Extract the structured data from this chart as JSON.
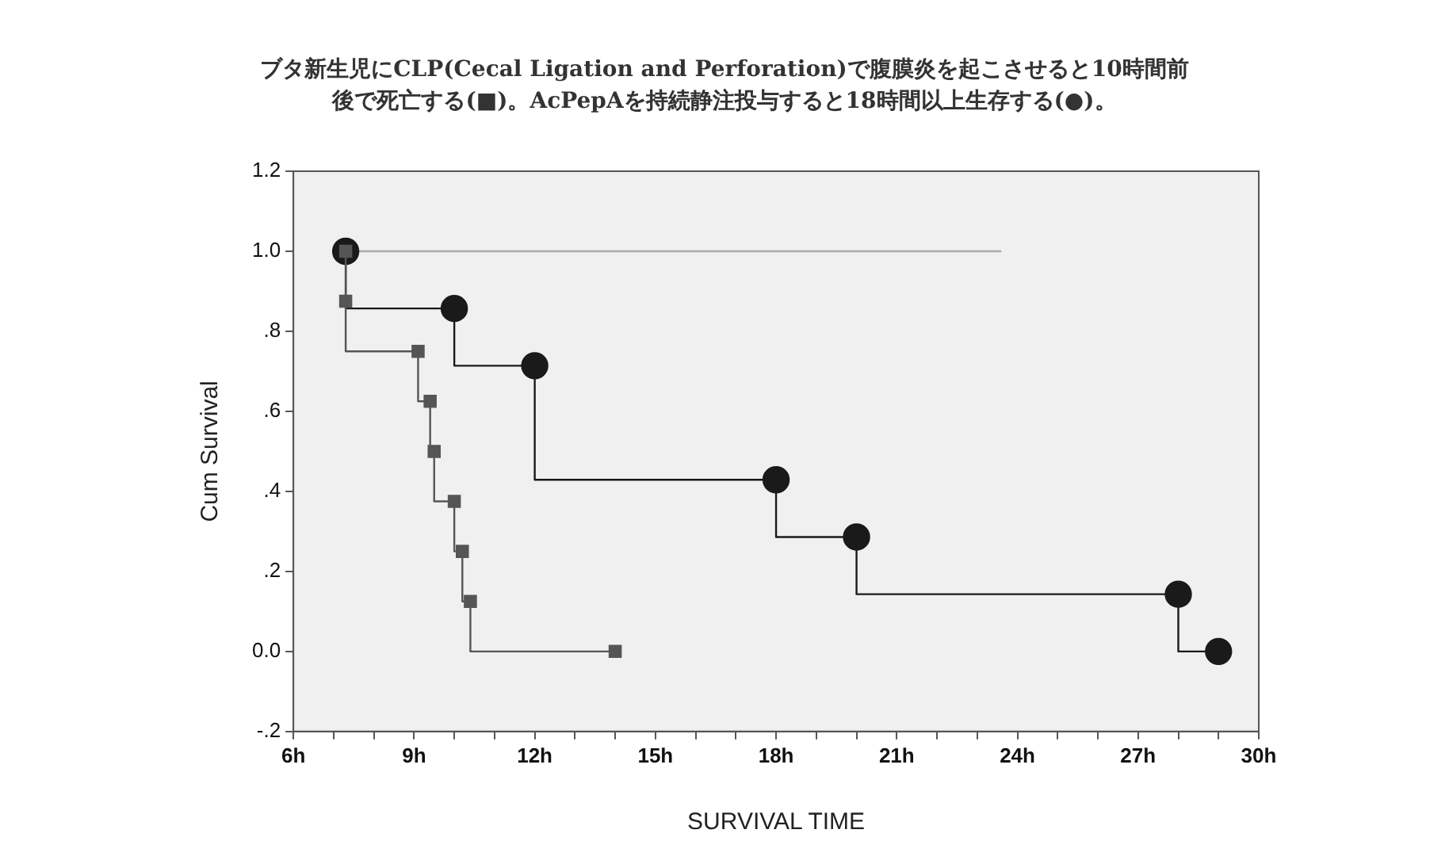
{
  "chart_data": {
    "type": "step",
    "title": "ブタ新生児にCLP(Cecal Ligation and Perforation)で腹膜炎を起こさせると10時間前後で死亡する(■)。AcPepAを持続静注投与すると18時間以上生存する(●)。",
    "xlabel": "SURVIVAL TIME",
    "ylabel": "Cum Survival",
    "series": [
      {
        "color": "#555555",
        "marker": "square",
        "x": [
          7.3,
          7.3,
          9.1,
          9.4,
          9.5,
          10.0,
          10.2,
          10.4,
          14.0
        ],
        "values": [
          1.0,
          0.875,
          0.75,
          0.625,
          0.5,
          0.375,
          0.25,
          0.125,
          0.0
        ]
      },
      {
        "color": "#1a1a1a",
        "marker": "circle",
        "x": [
          7.3,
          10.0,
          12.0,
          18.0,
          20.0,
          28.0,
          29.0
        ],
        "values": [
          1.0,
          0.857,
          0.714,
          0.429,
          0.286,
          0.143,
          0.0
        ]
      },
      {
        "color": "#aaaaaa",
        "marker": "none",
        "x": [
          7.3,
          23.6
        ],
        "values": [
          1.0,
          1.0
        ]
      }
    ],
    "xlim": [
      6,
      30
    ],
    "xticks": [
      {
        "value": 6,
        "label": "6h"
      },
      {
        "value": 7,
        "label": null
      },
      {
        "value": 8,
        "label": null
      },
      {
        "value": 9,
        "label": "9h"
      },
      {
        "value": 10,
        "label": null
      },
      {
        "value": 11,
        "label": null
      },
      {
        "value": 12,
        "label": "12h"
      },
      {
        "value": 13,
        "label": null
      },
      {
        "value": 14,
        "label": null
      },
      {
        "value": 15,
        "label": "15h"
      },
      {
        "value": 16,
        "label": null
      },
      {
        "value": 17,
        "label": null
      },
      {
        "value": 18,
        "label": "18h"
      },
      {
        "value": 19,
        "label": null
      },
      {
        "value": 20,
        "label": null
      },
      {
        "value": 21,
        "label": "21h"
      },
      {
        "value": 22,
        "label": null
      },
      {
        "value": 23,
        "label": null
      },
      {
        "value": 24,
        "label": "24h"
      },
      {
        "value": 25,
        "label": null
      },
      {
        "value": 26,
        "label": null
      },
      {
        "value": 27,
        "label": "27h"
      },
      {
        "value": 28,
        "label": null
      },
      {
        "value": 29,
        "label": null
      },
      {
        "value": 30,
        "label": "30h"
      }
    ],
    "ylim": [
      -0.2,
      1.2
    ],
    "yticks": [
      {
        "value": -0.2,
        "label": "-.2"
      },
      {
        "value": 0,
        "label": "0.0"
      },
      {
        "value": 0.2,
        "label": ".2"
      },
      {
        "value": 0.4,
        "label": ".4"
      },
      {
        "value": 0.6,
        "label": ".6"
      },
      {
        "value": 0.8,
        "label": ".8"
      },
      {
        "value": 1.0,
        "label": "1.0"
      },
      {
        "value": 1.2,
        "label": "1.2"
      }
    ],
    "grid": false,
    "legend": false
  }
}
